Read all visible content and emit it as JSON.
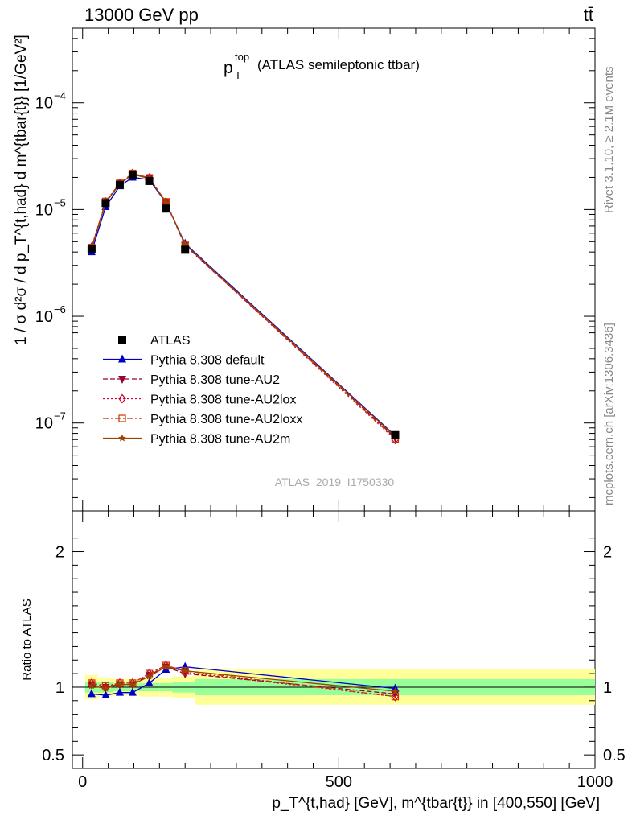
{
  "header": {
    "left": "13000 GeV pp",
    "right": "tt̄"
  },
  "side_text": {
    "rivet": "Rivet 3.1.10, ≥ 2.1M events",
    "mcplots": "mcplots.cern.ch [arXiv:1306.3436]"
  },
  "chart_data": {
    "type": "line",
    "title_main": "p",
    "title_sup": "top",
    "title_sub": "T",
    "title_rest": "(ATLAS semileptonic ttbar)",
    "watermark": "ATLAS_2019_I1750330",
    "y_scale": "log",
    "ylim": [
      1.5e-08,
      0.0005
    ],
    "xlim": [
      -20,
      1000
    ],
    "ylabel": "1 / σ d²σ / d p_T^{t,had} d m^{tbar{t}} [1/GeV²]",
    "xlabel": "p_T^{t,had} [GeV], m^{tbar{t}} in [400,550] [GeV]",
    "y_ticks": [
      {
        "value": 1e-07,
        "mant": "10",
        "exp": "−7"
      },
      {
        "value": 1e-06,
        "mant": "10",
        "exp": "−6"
      },
      {
        "value": 1e-05,
        "mant": "10",
        "exp": "−5"
      },
      {
        "value": 0.0001,
        "mant": "10",
        "exp": "−4"
      }
    ],
    "x_tick_labels": [
      "0",
      "500",
      "1000"
    ],
    "x": [
      17.5,
      45,
      72.5,
      97.5,
      130,
      162.5,
      200,
      610
    ],
    "data": {
      "name": "ATLAS",
      "values": [
        4.3e-06,
        1.15e-05,
        1.7e-05,
        2.1e-05,
        1.85e-05,
        1.02e-05,
        4.2e-06,
        7.7e-08
      ],
      "bins": [
        [
          5,
          30
        ],
        [
          30,
          60
        ],
        [
          60,
          85
        ],
        [
          85,
          110
        ],
        [
          110,
          150
        ],
        [
          150,
          175
        ],
        [
          175,
          220
        ],
        [
          220,
          1000
        ]
      ],
      "ratio_band_stat": [
        0.04,
        0.04,
        0.03,
        0.03,
        0.03,
        0.03,
        0.04,
        0.06
      ],
      "ratio_band_tot": [
        0.09,
        0.07,
        0.06,
        0.06,
        0.07,
        0.07,
        0.08,
        0.13
      ]
    },
    "series": [
      {
        "name": "Pythia 8.308 default",
        "color": "#0000cc",
        "marker": "triangle-up",
        "dash": "",
        "values": [
          4e-06,
          1.06e-05,
          1.66e-05,
          2e-05,
          1.9e-05,
          1.16e-05,
          4.8e-06,
          7.6e-08
        ],
        "ratio": [
          0.95,
          0.94,
          0.96,
          0.96,
          1.03,
          1.13,
          1.15,
          0.99
        ]
      },
      {
        "name": "Pythia 8.308 tune-AU2",
        "color": "#990033",
        "marker": "triangle-down",
        "dash": "6,3",
        "values": [
          4.4e-06,
          1.17e-05,
          1.74e-05,
          2.15e-05,
          1.96e-05,
          1.17e-05,
          4.6e-06,
          7.3e-08
        ],
        "ratio": [
          1.02,
          1.0,
          1.02,
          1.02,
          1.09,
          1.15,
          1.1,
          0.95
        ]
      },
      {
        "name": "Pythia 8.308 tune-AU2lox",
        "color": "#cc0033",
        "marker": "diamond-open",
        "dash": "2,3",
        "values": [
          4.45e-06,
          1.18e-05,
          1.76e-05,
          2.18e-05,
          1.98e-05,
          1.18e-05,
          4.65e-06,
          7e-08
        ],
        "ratio": [
          1.03,
          1.0,
          1.03,
          1.03,
          1.1,
          1.16,
          1.11,
          0.93
        ]
      },
      {
        "name": "Pythia 8.308 tune-AU2loxx",
        "color": "#cc3300",
        "marker": "square-open",
        "dash": "7,3,2,3",
        "values": [
          4.4e-06,
          1.19e-05,
          1.76e-05,
          2.18e-05,
          1.98e-05,
          1.18e-05,
          4.7e-06,
          7.1e-08
        ],
        "ratio": [
          1.03,
          1.01,
          1.03,
          1.03,
          1.1,
          1.16,
          1.12,
          0.93
        ]
      },
      {
        "name": "Pythia 8.308 tune-AU2m",
        "color": "#994400",
        "marker": "star",
        "dash": "",
        "values": [
          4.3e-06,
          1.16e-05,
          1.73e-05,
          2.14e-05,
          1.95e-05,
          1.17e-05,
          4.7e-06,
          7.5e-08
        ],
        "ratio": [
          1.01,
          0.99,
          1.02,
          1.02,
          1.08,
          1.15,
          1.12,
          0.97
        ]
      }
    ],
    "ratio": {
      "ylabel": "Ratio to ATLAS",
      "ylim": [
        0.4,
        2.3
      ],
      "ticks": [
        {
          "value": 0.5,
          "label": "0.5"
        },
        {
          "value": 1,
          "label": "1"
        },
        {
          "value": 2,
          "label": "2"
        }
      ]
    },
    "legend_position": "lower-left"
  }
}
